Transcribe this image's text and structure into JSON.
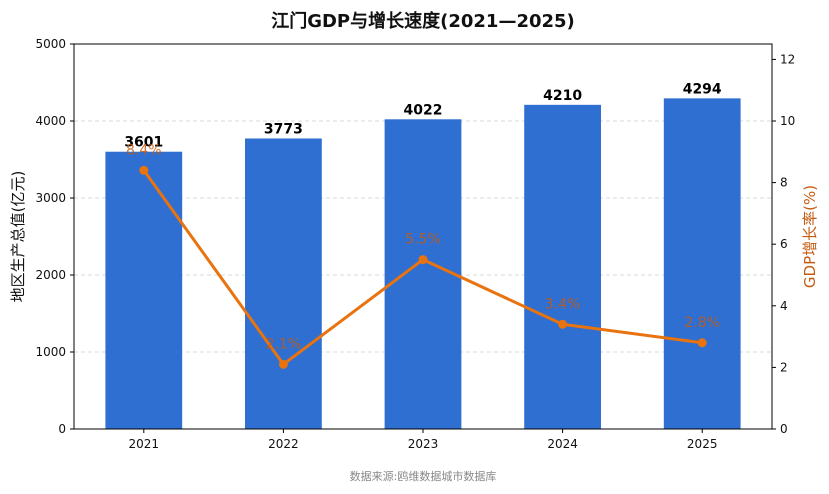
{
  "chart_data": {
    "type": "bar",
    "title": "江门GDP与增长速度(2021—2025)",
    "categories": [
      "2021",
      "2022",
      "2023",
      "2024",
      "2025"
    ],
    "series": [
      {
        "type": "bar",
        "values": [
          3601,
          3773,
          4022,
          4210,
          4294
        ],
        "value_labels": [
          "3601",
          "3773",
          "4022",
          "4210",
          "4294"
        ],
        "axis": "left",
        "color": "#2e6fd1"
      },
      {
        "type": "line",
        "values": [
          8.4,
          2.1,
          5.5,
          3.4,
          2.8
        ],
        "value_labels": [
          "8.4%",
          "2.1%",
          "5.5%",
          "3.4%",
          "2.8%"
        ],
        "axis": "right",
        "color": "#e8730f"
      }
    ],
    "ylabel": "地区生产总值(亿元)",
    "ylabel_right": "GDP增长率(%)",
    "ylim": [
      0,
      5000
    ],
    "ylim_right": [
      0,
      12.5
    ],
    "yticks": [
      "0",
      "1000",
      "2000",
      "3000",
      "4000",
      "5000"
    ],
    "yticks_right": [
      "0",
      "2",
      "4",
      "6",
      "8",
      "10",
      "12"
    ],
    "grid": "horizontal dashed",
    "legend": "none",
    "source": "数据来源:鸥维数据城市数据库"
  }
}
